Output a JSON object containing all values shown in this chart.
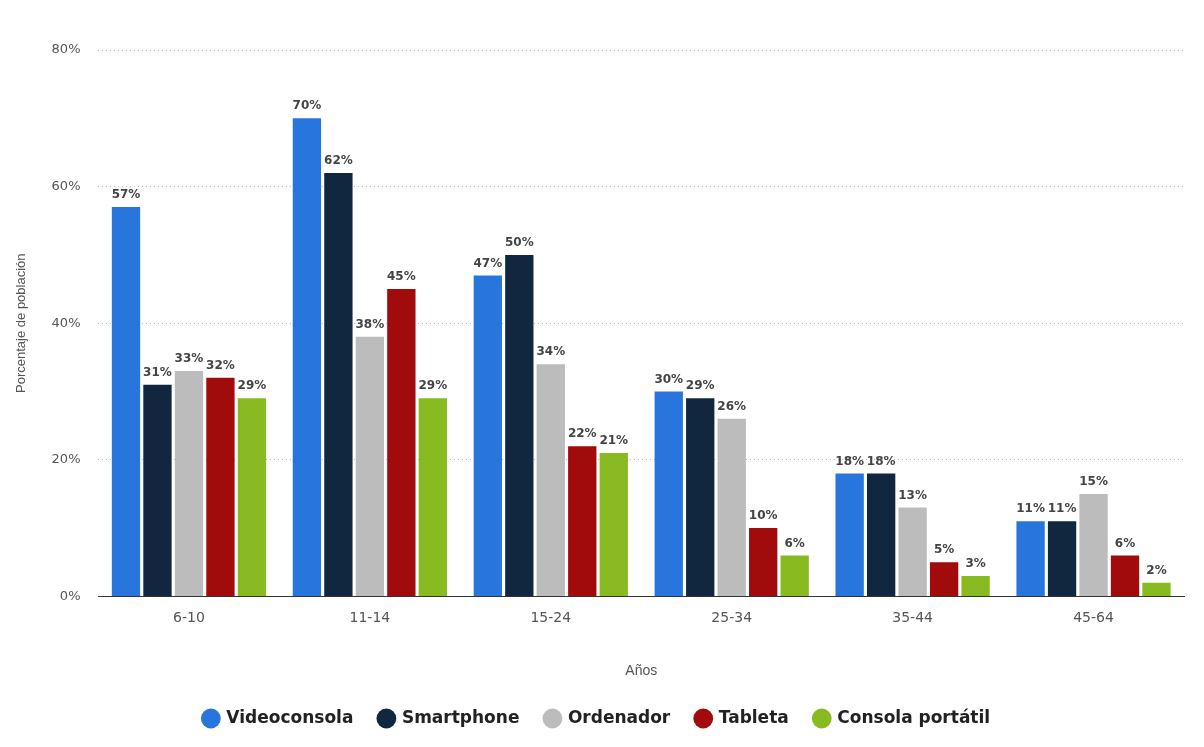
{
  "chart_data": {
    "type": "bar",
    "xlabel": "Años",
    "ylabel": "Porcentaje de población",
    "categories": [
      "6-10",
      "11-14",
      "15-24",
      "25-34",
      "35-44",
      "45-64"
    ],
    "series": [
      {
        "name": "Videoconsola",
        "color": "#2876dd",
        "values": [
          57,
          70,
          47,
          30,
          18,
          11
        ],
        "value_labels": [
          "57%",
          "70%",
          "47%",
          "30%",
          "18%",
          "11%"
        ]
      },
      {
        "name": "Smartphone",
        "color": "#11263f",
        "values": [
          31,
          62,
          50,
          29,
          18,
          11
        ],
        "value_labels": [
          "31%",
          "62%",
          "50%",
          "29%",
          "18%",
          "11%"
        ]
      },
      {
        "name": "Ordenador",
        "color": "#bcbcbc",
        "values": [
          33,
          38,
          34,
          26,
          13,
          15
        ],
        "value_labels": [
          "33%",
          "38%",
          "34%",
          "26%",
          "13%",
          "15%"
        ]
      },
      {
        "name": "Tableta",
        "color": "#a10b0b",
        "values": [
          32,
          45,
          22,
          10,
          5,
          6
        ],
        "value_labels": [
          "32%",
          "45%",
          "22%",
          "10%",
          "5%",
          "6%"
        ]
      },
      {
        "name": "Consola portátil",
        "color": "#88bb22",
        "values": [
          29,
          29,
          21,
          6,
          3,
          2
        ],
        "value_labels": [
          "29%",
          "29%",
          "21%",
          "6%",
          "3%",
          "2%"
        ]
      }
    ],
    "ylim": [
      0,
      80
    ],
    "yticks": [
      {
        "value": 0,
        "label": "0%"
      },
      {
        "value": 20,
        "label": "20%"
      },
      {
        "value": 40,
        "label": "40%"
      },
      {
        "value": 60,
        "label": "60%"
      },
      {
        "value": 80,
        "label": "80%"
      }
    ],
    "grid": "y",
    "legend": "bottom"
  }
}
